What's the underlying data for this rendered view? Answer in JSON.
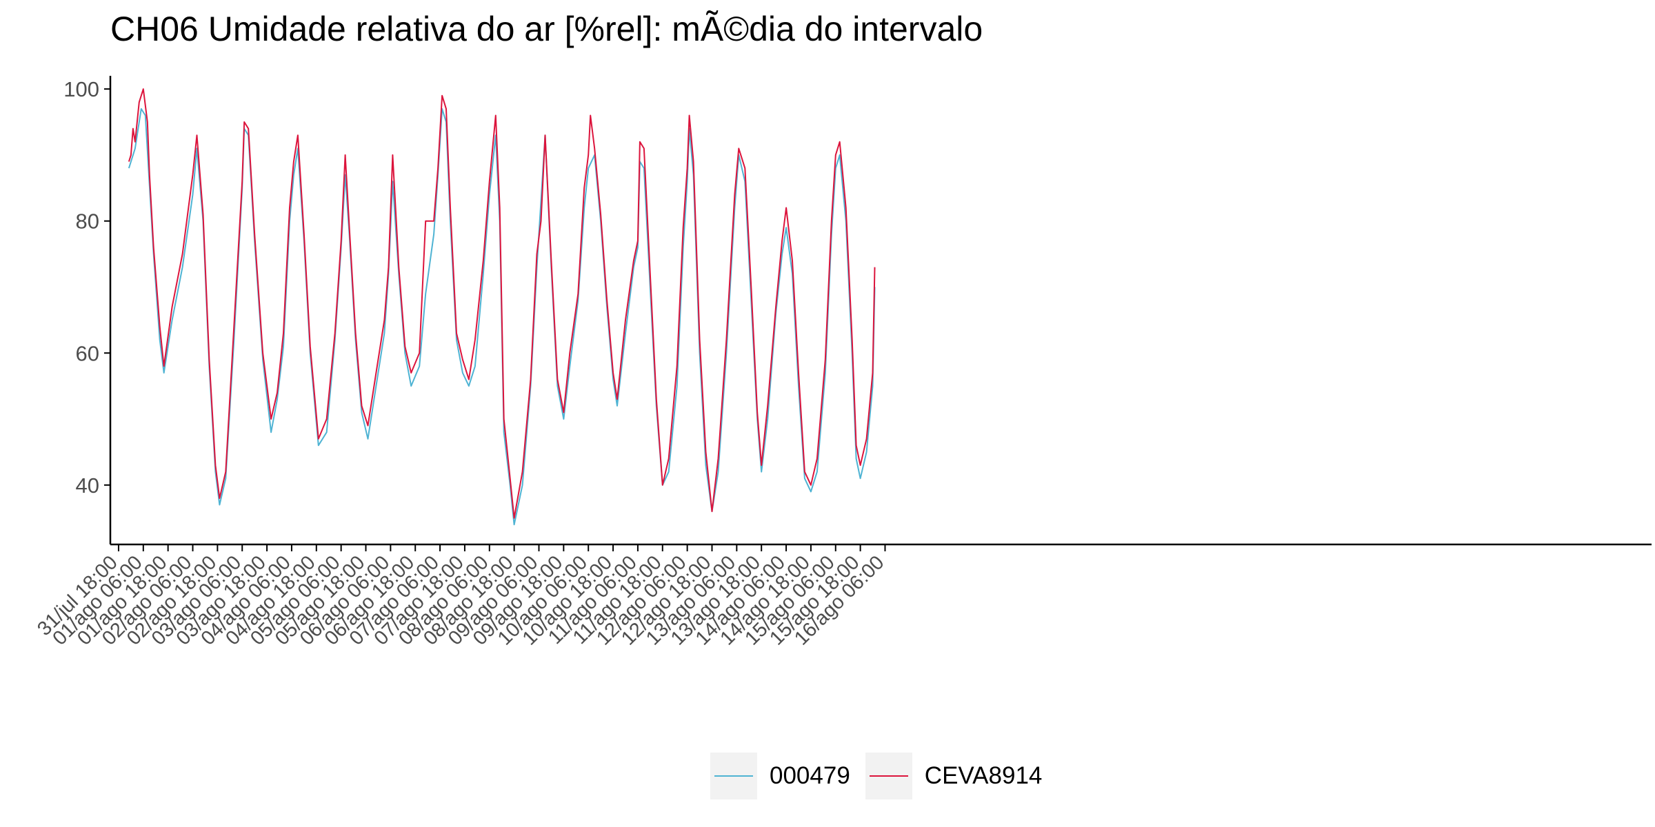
{
  "title": "CH06 Umidade relativa do ar [%rel]: mÃ©dia do intervalo",
  "chart_data": {
    "type": "line",
    "title": "CH06 Umidade relativa do ar [%rel]: mÃ©dia do intervalo",
    "xlabel": "",
    "ylabel": "",
    "ylim": [
      31,
      102
    ],
    "xlim_hours": [
      -10,
      738
    ],
    "yticks": [
      40,
      60,
      80,
      100
    ],
    "xticks": [
      "31/jul 18:00",
      "01/ago 06:00",
      "01/ago 18:00",
      "02/ago 06:00",
      "02/ago 18:00",
      "03/ago 06:00",
      "03/ago 18:00",
      "04/ago 06:00",
      "04/ago 18:00",
      "05/ago 06:00",
      "05/ago 18:00",
      "06/ago 06:00",
      "06/ago 18:00",
      "07/ago 06:00",
      "07/ago 18:00",
      "08/ago 06:00",
      "08/ago 18:00",
      "09/ago 06:00",
      "09/ago 18:00",
      "10/ago 06:00",
      "10/ago 18:00",
      "11/ago 06:00",
      "11/ago 18:00",
      "12/ago 06:00",
      "12/ago 18:00",
      "13/ago 06:00",
      "13/ago 18:00",
      "14/ago 06:00",
      "14/ago 18:00",
      "15/ago 06:00",
      "15/ago 18:00",
      "16/ago 06:00"
    ],
    "grid": false,
    "legend_position": "bottom",
    "series": [
      {
        "name": "000479",
        "color": "#4EB3D3",
        "points": [
          [
            "31/jul 23:00",
            88
          ],
          [
            "01/ago 02:00",
            91
          ],
          [
            "01/ago 05:00",
            97
          ],
          [
            "01/ago 07:00",
            96
          ],
          [
            "01/ago 11:00",
            75
          ],
          [
            "01/ago 14:00",
            62
          ],
          [
            "01/ago 16:00",
            57
          ],
          [
            "01/ago 20:00",
            65
          ],
          [
            "02/ago 01:00",
            73
          ],
          [
            "02/ago 06:00",
            84
          ],
          [
            "02/ago 08:00",
            91
          ],
          [
            "02/ago 11:00",
            80
          ],
          [
            "02/ago 14:00",
            58
          ],
          [
            "02/ago 17:00",
            42
          ],
          [
            "02/ago 19:00",
            37
          ],
          [
            "02/ago 22:00",
            41
          ],
          [
            "03/ago 02:00",
            62
          ],
          [
            "03/ago 06:00",
            85
          ],
          [
            "03/ago 07:00",
            94
          ],
          [
            "03/ago 09:00",
            93
          ],
          [
            "03/ago 12:00",
            77
          ],
          [
            "03/ago 16:00",
            59
          ],
          [
            "03/ago 20:00",
            48
          ],
          [
            "03/ago 23:00",
            53
          ],
          [
            "04/ago 02:00",
            61
          ],
          [
            "04/ago 05:00",
            80
          ],
          [
            "04/ago 07:00",
            87
          ],
          [
            "04/ago 09:00",
            91
          ],
          [
            "04/ago 12:00",
            77
          ],
          [
            "04/ago 15:00",
            60
          ],
          [
            "04/ago 19:00",
            46
          ],
          [
            "04/ago 23:00",
            48
          ],
          [
            "05/ago 03:00",
            62
          ],
          [
            "05/ago 06:00",
            76
          ],
          [
            "05/ago 08:00",
            87
          ],
          [
            "05/ago 10:00",
            78
          ],
          [
            "05/ago 13:00",
            62
          ],
          [
            "05/ago 16:00",
            51
          ],
          [
            "05/ago 19:00",
            47
          ],
          [
            "05/ago 23:00",
            55
          ],
          [
            "06/ago 03:00",
            63
          ],
          [
            "06/ago 05:00",
            72
          ],
          [
            "06/ago 07:00",
            86
          ],
          [
            "06/ago 10:00",
            72
          ],
          [
            "06/ago 13:00",
            60
          ],
          [
            "06/ago 16:00",
            55
          ],
          [
            "06/ago 20:00",
            58
          ],
          [
            "06/ago 23:00",
            69
          ],
          [
            "07/ago 03:00",
            78
          ],
          [
            "07/ago 05:00",
            87
          ],
          [
            "07/ago 07:00",
            97
          ],
          [
            "07/ago 09:00",
            95
          ],
          [
            "07/ago 11:00",
            80
          ],
          [
            "07/ago 14:00",
            62
          ],
          [
            "07/ago 17:00",
            57
          ],
          [
            "07/ago 20:00",
            55
          ],
          [
            "07/ago 23:00",
            58
          ],
          [
            "08/ago 03:00",
            72
          ],
          [
            "08/ago 06:00",
            84
          ],
          [
            "08/ago 09:00",
            93
          ],
          [
            "08/ago 11:00",
            80
          ],
          [
            "08/ago 13:00",
            48
          ],
          [
            "08/ago 16:00",
            40
          ],
          [
            "08/ago 18:00",
            34
          ],
          [
            "08/ago 22:00",
            40
          ],
          [
            "09/ago 02:00",
            55
          ],
          [
            "09/ago 05:00",
            73
          ],
          [
            "09/ago 07:00",
            83
          ],
          [
            "09/ago 09:00",
            93
          ],
          [
            "09/ago 12:00",
            73
          ],
          [
            "09/ago 15:00",
            55
          ],
          [
            "09/ago 18:00",
            50
          ],
          [
            "09/ago 21:00",
            58
          ],
          [
            "10/ago 01:00",
            68
          ],
          [
            "10/ago 04:00",
            82
          ],
          [
            "10/ago 06:00",
            88
          ],
          [
            "10/ago 09:00",
            90
          ],
          [
            "10/ago 12:00",
            80
          ],
          [
            "10/ago 15:00",
            67
          ],
          [
            "10/ago 18:00",
            56
          ],
          [
            "10/ago 20:00",
            52
          ],
          [
            "11/ago 00:00",
            63
          ],
          [
            "11/ago 04:00",
            73
          ],
          [
            "11/ago 06:00",
            76
          ],
          [
            "11/ago 07:00",
            89
          ],
          [
            "11/ago 09:00",
            88
          ],
          [
            "11/ago 12:00",
            70
          ],
          [
            "11/ago 15:00",
            52
          ],
          [
            "11/ago 18:00",
            40
          ],
          [
            "11/ago 21:00",
            42
          ],
          [
            "12/ago 01:00",
            55
          ],
          [
            "12/ago 04:00",
            76
          ],
          [
            "12/ago 06:00",
            86
          ],
          [
            "12/ago 07:00",
            94
          ],
          [
            "12/ago 09:00",
            87
          ],
          [
            "12/ago 12:00",
            60
          ],
          [
            "12/ago 15:00",
            43
          ],
          [
            "12/ago 18:00",
            36
          ],
          [
            "12/ago 21:00",
            42
          ],
          [
            "13/ago 01:00",
            60
          ],
          [
            "13/ago 05:00",
            82
          ],
          [
            "13/ago 07:00",
            90
          ],
          [
            "13/ago 10:00",
            86
          ],
          [
            "13/ago 13:00",
            68
          ],
          [
            "13/ago 16:00",
            50
          ],
          [
            "13/ago 18:00",
            42
          ],
          [
            "13/ago 21:00",
            50
          ],
          [
            "14/ago 01:00",
            66
          ],
          [
            "14/ago 04:00",
            75
          ],
          [
            "14/ago 06:00",
            79
          ],
          [
            "14/ago 09:00",
            72
          ],
          [
            "14/ago 12:00",
            55
          ],
          [
            "14/ago 15:00",
            41
          ],
          [
            "14/ago 18:00",
            39
          ],
          [
            "14/ago 21:00",
            42
          ],
          [
            "15/ago 01:00",
            57
          ],
          [
            "15/ago 04:00",
            78
          ],
          [
            "15/ago 06:00",
            88
          ],
          [
            "15/ago 08:00",
            90
          ],
          [
            "15/ago 11:00",
            80
          ],
          [
            "15/ago 14:00",
            60
          ],
          [
            "15/ago 16:00",
            44
          ],
          [
            "15/ago 18:00",
            41
          ],
          [
            "15/ago 21:00",
            45
          ],
          [
            "16/ago 00:00",
            55
          ],
          [
            "16/ago 01:00",
            70
          ]
        ]
      },
      {
        "name": "CEVA8914",
        "color": "#DC143C",
        "points": [
          [
            "31/jul 23:00",
            89
          ],
          [
            "01/ago 00:00",
            90
          ],
          [
            "01/ago 01:00",
            94
          ],
          [
            "01/ago 02:00",
            92
          ],
          [
            "01/ago 04:00",
            98
          ],
          [
            "01/ago 06:00",
            100
          ],
          [
            "01/ago 08:00",
            95
          ],
          [
            "01/ago 09:00",
            87
          ],
          [
            "01/ago 11:00",
            76
          ],
          [
            "01/ago 14:00",
            64
          ],
          [
            "01/ago 16:00",
            58
          ],
          [
            "01/ago 20:00",
            67
          ],
          [
            "02/ago 01:00",
            75
          ],
          [
            "02/ago 06:00",
            87
          ],
          [
            "02/ago 08:00",
            93
          ],
          [
            "02/ago 11:00",
            81
          ],
          [
            "02/ago 14:00",
            59
          ],
          [
            "02/ago 17:00",
            43
          ],
          [
            "02/ago 19:00",
            38
          ],
          [
            "02/ago 22:00",
            42
          ],
          [
            "03/ago 02:00",
            64
          ],
          [
            "03/ago 06:00",
            86
          ],
          [
            "03/ago 07:00",
            95
          ],
          [
            "03/ago 09:00",
            94
          ],
          [
            "03/ago 12:00",
            78
          ],
          [
            "03/ago 16:00",
            60
          ],
          [
            "03/ago 20:00",
            50
          ],
          [
            "03/ago 23:00",
            54
          ],
          [
            "04/ago 02:00",
            63
          ],
          [
            "04/ago 05:00",
            82
          ],
          [
            "04/ago 07:00",
            89
          ],
          [
            "04/ago 09:00",
            93
          ],
          [
            "04/ago 12:00",
            78
          ],
          [
            "04/ago 15:00",
            61
          ],
          [
            "04/ago 19:00",
            47
          ],
          [
            "04/ago 23:00",
            50
          ],
          [
            "05/ago 03:00",
            63
          ],
          [
            "05/ago 06:00",
            77
          ],
          [
            "05/ago 08:00",
            90
          ],
          [
            "05/ago 10:00",
            79
          ],
          [
            "05/ago 13:00",
            63
          ],
          [
            "05/ago 16:00",
            52
          ],
          [
            "05/ago 19:00",
            49
          ],
          [
            "05/ago 23:00",
            57
          ],
          [
            "06/ago 03:00",
            65
          ],
          [
            "06/ago 05:00",
            73
          ],
          [
            "06/ago 07:00",
            90
          ],
          [
            "06/ago 10:00",
            73
          ],
          [
            "06/ago 13:00",
            61
          ],
          [
            "06/ago 16:00",
            57
          ],
          [
            "06/ago 20:00",
            60
          ],
          [
            "06/ago 23:00",
            80
          ],
          [
            "07/ago 03:00",
            80
          ],
          [
            "07/ago 05:00",
            88
          ],
          [
            "07/ago 07:00",
            99
          ],
          [
            "07/ago 09:00",
            97
          ],
          [
            "07/ago 11:00",
            82
          ],
          [
            "07/ago 14:00",
            63
          ],
          [
            "07/ago 17:00",
            59
          ],
          [
            "07/ago 20:00",
            56
          ],
          [
            "07/ago 23:00",
            62
          ],
          [
            "08/ago 03:00",
            74
          ],
          [
            "08/ago 06:00",
            86
          ],
          [
            "08/ago 09:00",
            96
          ],
          [
            "08/ago 11:00",
            82
          ],
          [
            "08/ago 13:00",
            50
          ],
          [
            "08/ago 16:00",
            41
          ],
          [
            "08/ago 18:00",
            35
          ],
          [
            "08/ago 22:00",
            42
          ],
          [
            "09/ago 02:00",
            56
          ],
          [
            "09/ago 05:00",
            75
          ],
          [
            "09/ago 07:00",
            80
          ],
          [
            "09/ago 09:00",
            93
          ],
          [
            "09/ago 12:00",
            74
          ],
          [
            "09/ago 15:00",
            56
          ],
          [
            "09/ago 18:00",
            51
          ],
          [
            "09/ago 21:00",
            60
          ],
          [
            "10/ago 01:00",
            69
          ],
          [
            "10/ago 04:00",
            85
          ],
          [
            "10/ago 06:00",
            90
          ],
          [
            "10/ago 07:00",
            96
          ],
          [
            "10/ago 09:00",
            91
          ],
          [
            "10/ago 12:00",
            81
          ],
          [
            "10/ago 15:00",
            68
          ],
          [
            "10/ago 18:00",
            57
          ],
          [
            "10/ago 20:00",
            53
          ],
          [
            "11/ago 00:00",
            65
          ],
          [
            "11/ago 04:00",
            74
          ],
          [
            "11/ago 06:00",
            77
          ],
          [
            "11/ago 07:00",
            92
          ],
          [
            "11/ago 09:00",
            91
          ],
          [
            "11/ago 12:00",
            72
          ],
          [
            "11/ago 15:00",
            53
          ],
          [
            "11/ago 18:00",
            40
          ],
          [
            "11/ago 21:00",
            44
          ],
          [
            "12/ago 01:00",
            58
          ],
          [
            "12/ago 04:00",
            79
          ],
          [
            "12/ago 06:00",
            88
          ],
          [
            "12/ago 07:00",
            96
          ],
          [
            "12/ago 09:00",
            89
          ],
          [
            "12/ago 12:00",
            62
          ],
          [
            "12/ago 15:00",
            45
          ],
          [
            "12/ago 18:00",
            36
          ],
          [
            "12/ago 21:00",
            44
          ],
          [
            "13/ago 01:00",
            62
          ],
          [
            "13/ago 05:00",
            84
          ],
          [
            "13/ago 07:00",
            91
          ],
          [
            "13/ago 10:00",
            88
          ],
          [
            "13/ago 13:00",
            70
          ],
          [
            "13/ago 16:00",
            51
          ],
          [
            "13/ago 18:00",
            43
          ],
          [
            "13/ago 21:00",
            52
          ],
          [
            "14/ago 01:00",
            67
          ],
          [
            "14/ago 04:00",
            77
          ],
          [
            "14/ago 06:00",
            82
          ],
          [
            "14/ago 09:00",
            74
          ],
          [
            "14/ago 12:00",
            57
          ],
          [
            "14/ago 15:00",
            42
          ],
          [
            "14/ago 18:00",
            40
          ],
          [
            "14/ago 21:00",
            44
          ],
          [
            "15/ago 01:00",
            59
          ],
          [
            "15/ago 04:00",
            80
          ],
          [
            "15/ago 06:00",
            90
          ],
          [
            "15/ago 08:00",
            92
          ],
          [
            "15/ago 11:00",
            82
          ],
          [
            "15/ago 14:00",
            62
          ],
          [
            "15/ago 16:00",
            46
          ],
          [
            "15/ago 18:00",
            43
          ],
          [
            "15/ago 21:00",
            47
          ],
          [
            "16/ago 00:00",
            57
          ],
          [
            "16/ago 01:00",
            73
          ]
        ]
      }
    ]
  }
}
